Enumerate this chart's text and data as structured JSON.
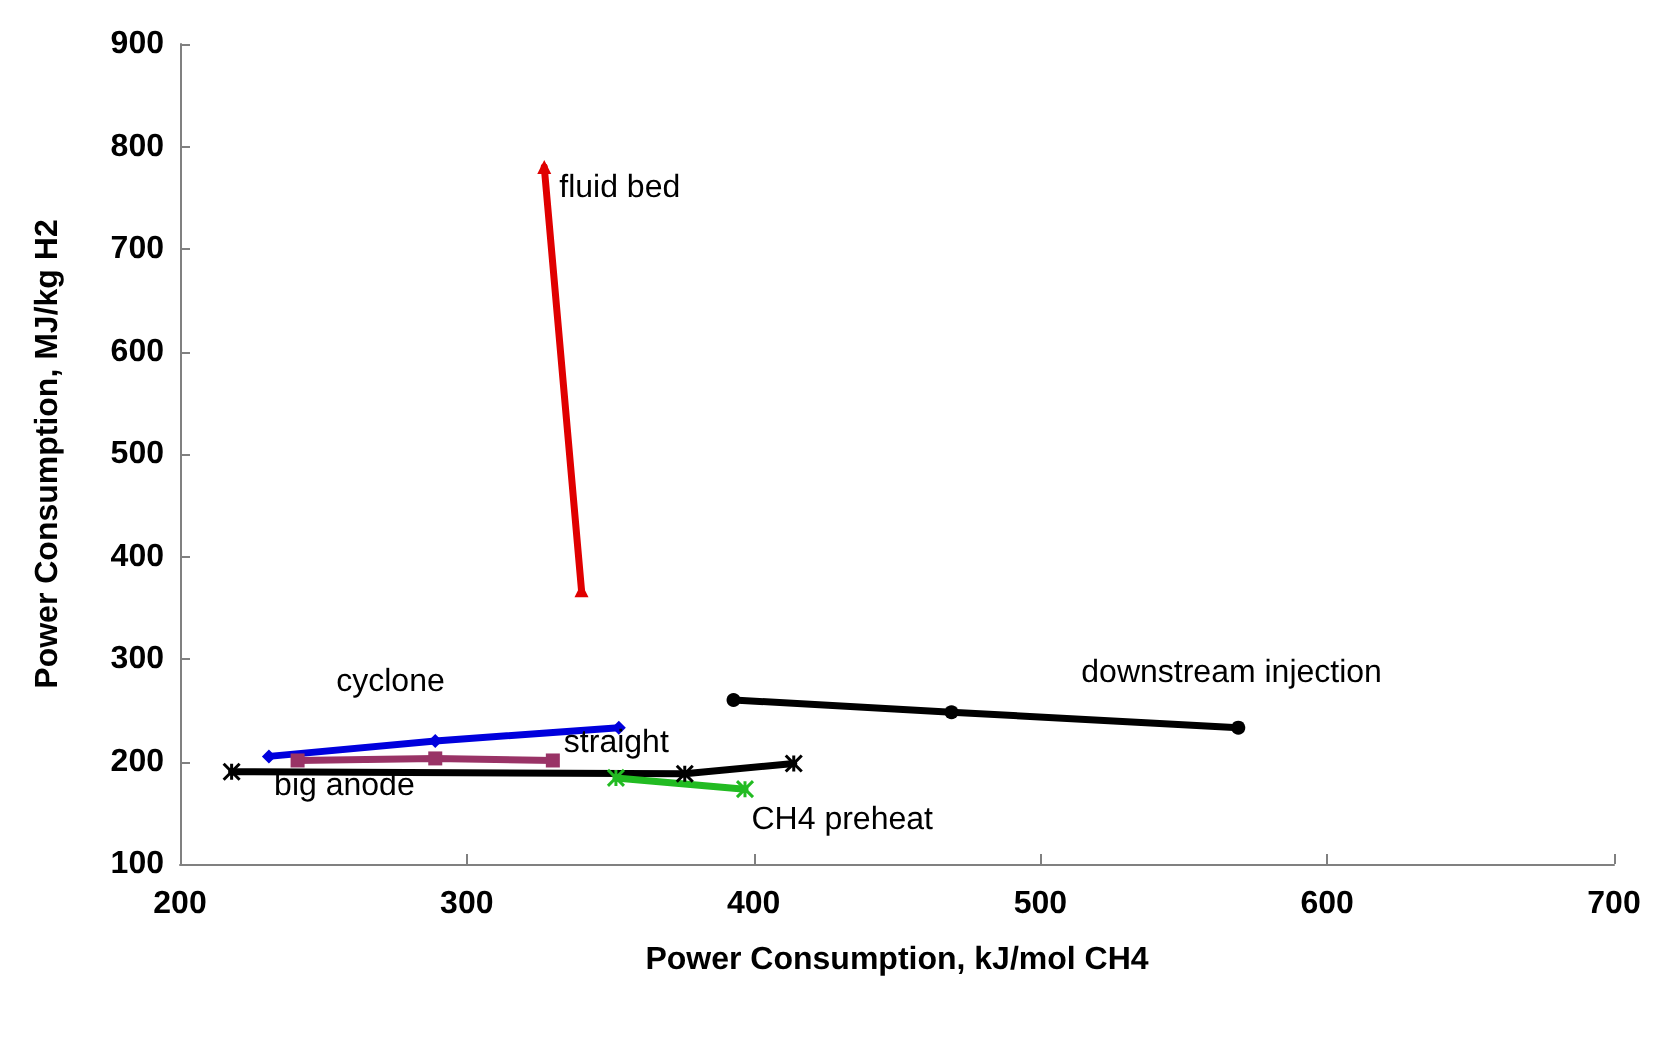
{
  "chart_data": {
    "type": "line",
    "xlabel": "Power Consumption, kJ/mol CH4",
    "ylabel": "Power Consumption, MJ/kg H2",
    "xlim": [
      200,
      700
    ],
    "xticks": [
      200,
      300,
      400,
      500,
      600,
      700
    ],
    "ylim": [
      100,
      900
    ],
    "yticks": [
      100,
      200,
      300,
      400,
      500,
      600,
      700,
      800,
      900
    ],
    "grid": false,
    "series": [
      {
        "name": "fluid bed",
        "color": "#e00000",
        "marker": "triangle",
        "x": [
          327,
          340
        ],
        "values": [
          780,
          367
        ]
      },
      {
        "name": "cyclone",
        "color": "#0000dd",
        "marker": "diamond",
        "x": [
          231,
          289,
          353
        ],
        "values": [
          205,
          220,
          233
        ]
      },
      {
        "name": "straight",
        "color": "#993366",
        "marker": "square",
        "x": [
          241,
          289,
          330
        ],
        "values": [
          201,
          203,
          201
        ]
      },
      {
        "name": "big anode",
        "color": "#000000",
        "marker": "cross",
        "x": [
          218,
          376,
          414
        ],
        "values": [
          190,
          188,
          198
        ]
      },
      {
        "name": "CH4 preheat",
        "color": "#22bb22",
        "marker": "cross",
        "x": [
          352,
          397
        ],
        "values": [
          184,
          173
        ]
      },
      {
        "name": "downstream injection",
        "color": "#000000",
        "marker": "circle",
        "x": [
          393,
          469,
          569
        ],
        "values": [
          260,
          248,
          233
        ]
      }
    ]
  }
}
